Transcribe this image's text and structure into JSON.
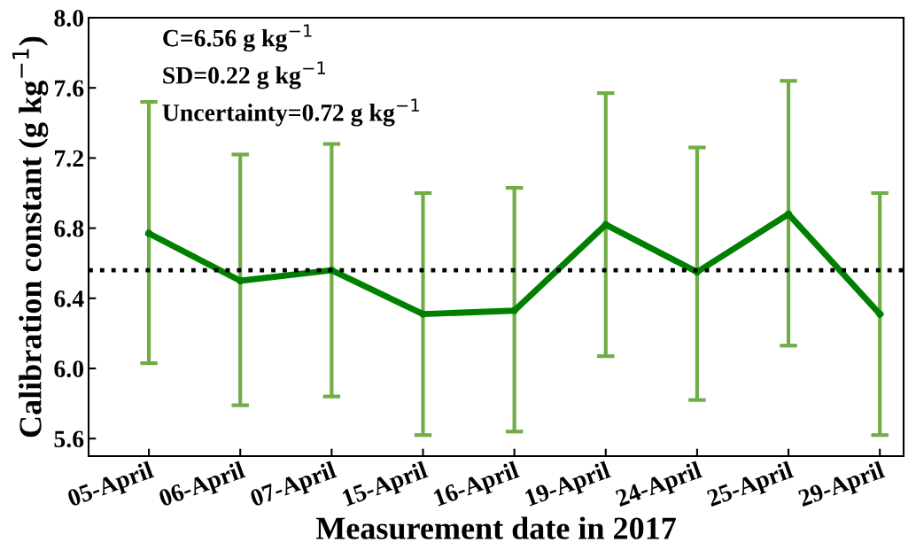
{
  "chart_data": {
    "type": "line",
    "xlabel": "Measurement date in 2017",
    "ylabel": "Calibration constant (g kg$^{−1}$)",
    "categories": [
      "05-April",
      "06-April",
      "07-April",
      "15-April",
      "16-April",
      "19-April",
      "24-April",
      "25-April",
      "29-April"
    ],
    "series": [
      {
        "color": "#008000",
        "values": [
          6.77,
          6.5,
          6.56,
          6.31,
          6.33,
          6.82,
          6.55,
          6.88,
          6.31
        ],
        "errors": [
          [
            6.03,
            7.52
          ],
          [
            5.79,
            7.22
          ],
          [
            5.84,
            7.28
          ],
          [
            5.62,
            7.0
          ],
          [
            5.64,
            7.03
          ],
          [
            6.07,
            7.57
          ],
          [
            5.82,
            7.26
          ],
          [
            6.13,
            7.64
          ],
          [
            5.62,
            7.0
          ]
        ]
      }
    ],
    "marker": "circle",
    "line_style": "solid",
    "ref_lines": [
      {
        "axis": "y",
        "value": 6.56,
        "color": "#000000",
        "line_style": "dotted"
      }
    ],
    "annotations": [
      "C=6.56 g kg$^{−1}$",
      "SD=0.22 g kg$^{−1}$",
      "Uncertainty=0.72 g kg$^{−1}$"
    ],
    "ylim": [
      5.5,
      8.0
    ],
    "yticks": [
      {
        "value": 5.6,
        "label": "5.6"
      },
      {
        "value": 6.0,
        "label": "6.0"
      },
      {
        "value": 6.4,
        "label": "6.4"
      },
      {
        "value": 6.8,
        "label": "6.8"
      },
      {
        "value": 7.2,
        "label": "7.2"
      },
      {
        "value": 7.6,
        "label": "7.6"
      },
      {
        "value": 8.0,
        "label": "8.0"
      }
    ],
    "grid": false,
    "legend": false
  }
}
